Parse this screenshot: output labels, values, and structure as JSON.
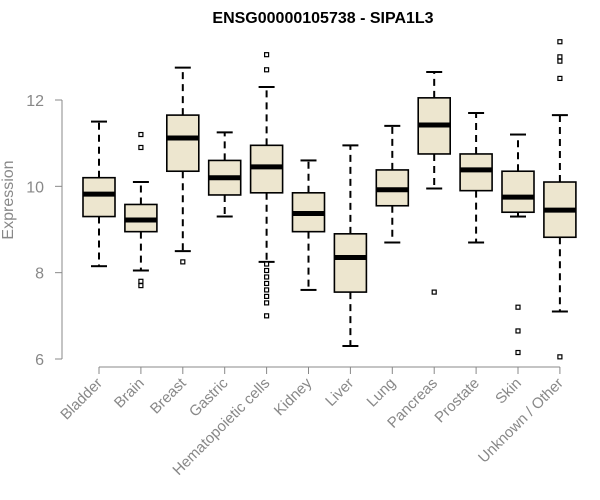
{
  "chart_data": {
    "type": "boxplot",
    "title": "ENSG00000105738 - SIPA1L3",
    "xlabel": "",
    "ylabel": "Expression",
    "ylim": [
      5.95,
      13.4
    ],
    "yticks": [
      6,
      8,
      10,
      12
    ],
    "colors": {
      "box_fill": "#ede6cf",
      "stroke": "#000000",
      "axis": "#888888"
    },
    "categories": [
      "Bladder",
      "Brain",
      "Breast",
      "Gastric",
      "Hematopoietic cells",
      "Kidney",
      "Liver",
      "Lung",
      "Pancreas",
      "Prostate",
      "Skin",
      "Unknown / Other"
    ],
    "boxes": [
      {
        "name": "Bladder",
        "whisker_low": 8.15,
        "q1": 9.3,
        "median": 9.82,
        "q3": 10.2,
        "whisker_high": 11.5,
        "outliers": []
      },
      {
        "name": "Brain",
        "whisker_low": 8.05,
        "q1": 8.95,
        "median": 9.22,
        "q3": 9.58,
        "whisker_high": 10.1,
        "outliers": [
          11.2,
          10.9,
          7.8,
          7.7
        ]
      },
      {
        "name": "Breast",
        "whisker_low": 8.5,
        "q1": 10.35,
        "median": 11.12,
        "q3": 11.65,
        "whisker_high": 12.75,
        "outliers": [
          8.25
        ]
      },
      {
        "name": "Gastric",
        "whisker_low": 9.3,
        "q1": 9.8,
        "median": 10.2,
        "q3": 10.6,
        "whisker_high": 11.25,
        "outliers": []
      },
      {
        "name": "Hematopoietic cells",
        "whisker_low": 8.25,
        "q1": 9.85,
        "median": 10.45,
        "q3": 10.95,
        "whisker_high": 12.3,
        "outliers": [
          13.05,
          12.7,
          8.2,
          8.05,
          7.9,
          7.75,
          7.6,
          7.45,
          7.3,
          7.0
        ]
      },
      {
        "name": "Kidney",
        "whisker_low": 7.6,
        "q1": 8.95,
        "median": 9.37,
        "q3": 9.85,
        "whisker_high": 10.6,
        "outliers": []
      },
      {
        "name": "Liver",
        "whisker_low": 6.3,
        "q1": 7.55,
        "median": 8.35,
        "q3": 8.9,
        "whisker_high": 10.95,
        "outliers": []
      },
      {
        "name": "Lung",
        "whisker_low": 8.7,
        "q1": 9.55,
        "median": 9.92,
        "q3": 10.38,
        "whisker_high": 11.4,
        "outliers": []
      },
      {
        "name": "Pancreas",
        "whisker_low": 9.95,
        "q1": 10.75,
        "median": 11.42,
        "q3": 12.05,
        "whisker_high": 12.65,
        "outliers": [
          7.55
        ]
      },
      {
        "name": "Prostate",
        "whisker_low": 8.7,
        "q1": 9.9,
        "median": 10.38,
        "q3": 10.75,
        "whisker_high": 11.7,
        "outliers": []
      },
      {
        "name": "Skin",
        "whisker_low": 9.3,
        "q1": 9.4,
        "median": 9.75,
        "q3": 10.35,
        "whisker_high": 11.2,
        "outliers": [
          7.2,
          6.65,
          6.15
        ]
      },
      {
        "name": "Unknown / Other",
        "whisker_low": 7.1,
        "q1": 8.82,
        "median": 9.45,
        "q3": 10.1,
        "whisker_high": 11.65,
        "outliers": [
          13.35,
          13.0,
          12.9,
          12.5,
          6.05
        ]
      }
    ]
  }
}
